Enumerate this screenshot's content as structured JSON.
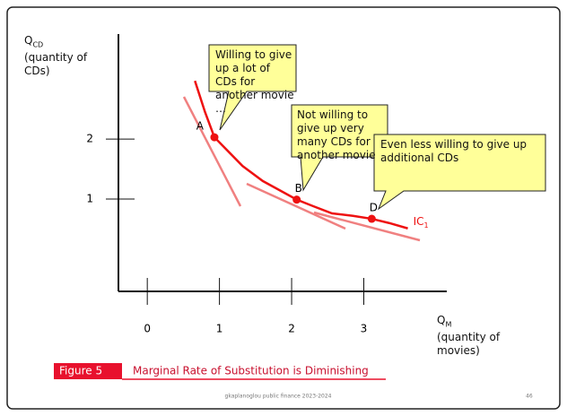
{
  "chart_data": {
    "type": "line",
    "ylabel": {
      "symbol": "Q",
      "sub": "CD",
      "text": "(quantity of CDs)"
    },
    "xlabel": {
      "symbol": "Q",
      "sub": "M",
      "text": "(quantity of movies)"
    },
    "xlim": [
      -0.4,
      4.15
    ],
    "ylim": [
      -0.54,
      3.75
    ],
    "xticks": [
      0,
      1,
      2,
      3
    ],
    "yticks": [
      1,
      2
    ],
    "series": [
      {
        "name": "IC",
        "name_sub": "1",
        "color": "#ee1111",
        "x": [
          0.66,
          0.8,
          0.93,
          1.32,
          1.6,
          2.07,
          2.3,
          2.56,
          2.85,
          3.11,
          3.35,
          3.61
        ],
        "values": [
          2.97,
          2.45,
          2.03,
          1.55,
          1.3,
          0.99,
          0.88,
          0.76,
          0.72,
          0.67,
          0.6,
          0.51
        ]
      }
    ],
    "points": [
      {
        "label": "A",
        "x": 0.93,
        "y": 2.03
      },
      {
        "label": "B",
        "x": 2.07,
        "y": 0.99
      },
      {
        "label": "D",
        "x": 3.11,
        "y": 0.67
      }
    ],
    "callouts": [
      "Willing to give up a lot of CDs for another movie …",
      "Not willing to give up very many CDs for another movie",
      "Even less willing to give up additional CDs"
    ],
    "figure": {
      "number": "Figure 5",
      "caption": "Marginal Rate of Substitution is Diminishing"
    },
    "footer": {
      "text": "gkaplanoglou public finance 2023-2024",
      "page": "46"
    }
  }
}
